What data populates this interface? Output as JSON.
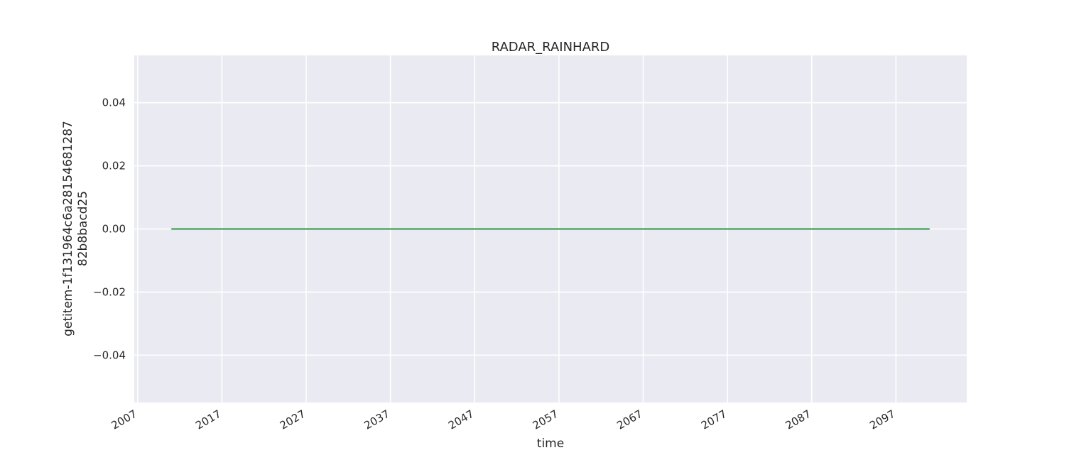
{
  "chart_data": {
    "type": "line",
    "title": "RADAR_RAINHARD",
    "xlabel": "time",
    "ylabel_lines": [
      "getitem-1f131964c6a28154681287",
      "82b8bacd25"
    ],
    "x_axis_type": "date",
    "xlim": [
      2006.6,
      2105.4
    ],
    "ylim": [
      -0.055,
      0.055
    ],
    "x_ticks": [
      2007,
      2017,
      2027,
      2037,
      2047,
      2057,
      2067,
      2077,
      2087,
      2097
    ],
    "x_tick_labels": [
      "2007",
      "2017",
      "2027",
      "2037",
      "2047",
      "2057",
      "2067",
      "2077",
      "2087",
      "2097"
    ],
    "y_ticks": [
      -0.04,
      -0.02,
      0.0,
      0.02,
      0.04
    ],
    "y_tick_labels": [
      "−0.04",
      "−0.02",
      "0.00",
      "0.02",
      "0.04"
    ],
    "grid": true,
    "series": [
      {
        "color": "#55a868",
        "x": [
          2011,
          2101
        ],
        "y": [
          0,
          0
        ]
      }
    ],
    "colors": {
      "plot_background": "#eaeaf2",
      "grid": "#ffffff",
      "text": "#262626"
    }
  }
}
